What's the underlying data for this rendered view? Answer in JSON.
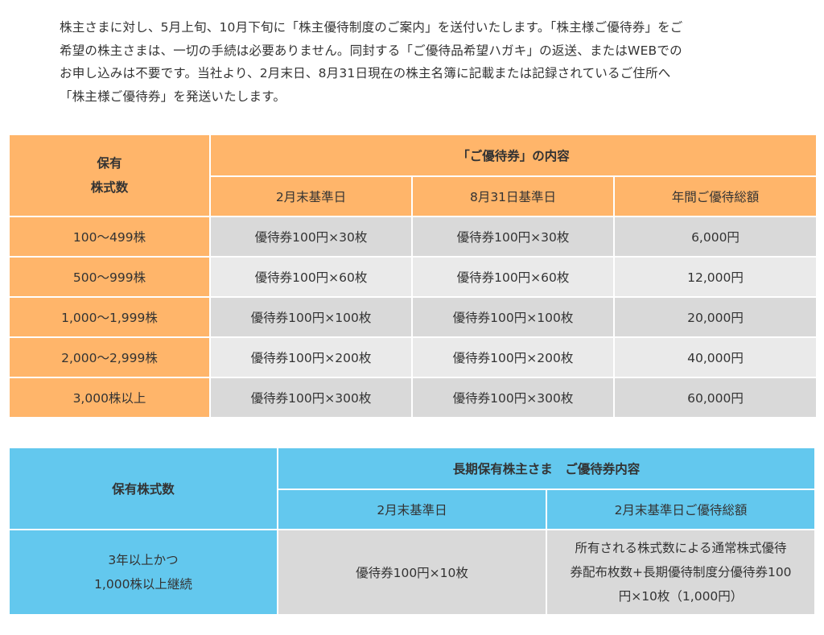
{
  "intro": {
    "lines": [
      "株主さまに対し、5月上旬、10月下旬に「株主優待制度のご案内」を送付いたします。「株主様ご優待券」をご",
      "希望の株主さまは、一切の手続は必要ありません。同封する「ご優待品希望ハガキ」の返送、またはWEBでの",
      "お申し込みは不要です。当社より、2月末日、8月31日現在の株主名簿に記載または記録されているご住所へ",
      "「株主様ご優待券」を発送いたします。"
    ]
  },
  "table1": {
    "corner_line1": "保有",
    "corner_line2": "株式数",
    "group_header": "「ご優待券」の内容",
    "col_headers": [
      "2月末基準日",
      "8月31日基準日",
      "年間ご優待総額"
    ],
    "rows": [
      {
        "shares": "100～499株",
        "feb": "優待券100円×30枚",
        "aug": "優待券100円×30枚",
        "total": "6,000円"
      },
      {
        "shares": "500～999株",
        "feb": "優待券100円×60枚",
        "aug": "優待券100円×60枚",
        "total": "12,000円"
      },
      {
        "shares": "1,000～1,999株",
        "feb": "優待券100円×100枚",
        "aug": "優待券100円×100枚",
        "total": "20,000円"
      },
      {
        "shares": "2,000～2,999株",
        "feb": "優待券100円×200枚",
        "aug": "優待券100円×200枚",
        "total": "40,000円"
      },
      {
        "shares": "3,000株以上",
        "feb": "優待券100円×300枚",
        "aug": "優待券100円×300枚",
        "total": "60,000円"
      }
    ]
  },
  "table2": {
    "corner": "保有株式数",
    "group_header": "長期保有株主さま　ご優待券内容",
    "col_headers": [
      "2月末基準日",
      "2月末基準日ご優待総額"
    ],
    "row": {
      "shares_line1": "3年以上かつ",
      "shares_line2": "1,000株以上継続",
      "feb": "優待券100円×10枚",
      "total_line1": "所有される株式数による通常株式優待",
      "total_line2": "券配布枚数+長期優待制度分優待券100",
      "total_line3": "円×10枚（1,000円）"
    }
  },
  "colors": {
    "orange_header": "#ffb56a",
    "blue_header": "#63c8ee",
    "cell_gray_dark": "#d9d9d9",
    "cell_gray_light": "#eaeaea"
  }
}
